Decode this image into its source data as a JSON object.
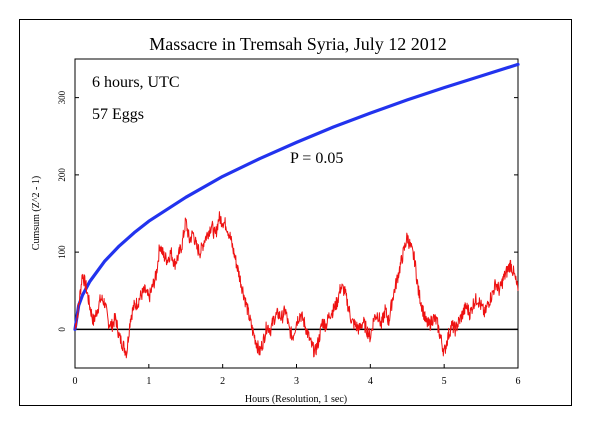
{
  "chart_data": {
    "type": "line",
    "title": "Massacre in Tremsah Syria, July 12 2012",
    "xlabel": "Hours (Resolution, 1 sec)",
    "ylabel": "Cumsum (Z^2 - 1)",
    "xlim": [
      0,
      6
    ],
    "ylim": [
      -50,
      350
    ],
    "xticks": [
      0,
      1,
      2,
      3,
      4,
      5,
      6
    ],
    "yticks": [
      0,
      100,
      200,
      300
    ],
    "annotations": [
      "6 hours, UTC",
      "57 Eggs",
      "P = 0.05"
    ],
    "grid": false,
    "colors": {
      "cumsum": "#ee1111",
      "p05": "#2233ee",
      "baseline": "#000000",
      "text_red": "#dd1111",
      "text_blue": "#2233cc"
    },
    "series": [
      {
        "name": "P = 0.05",
        "x": [
          0,
          0.05,
          0.1,
          0.2,
          0.4,
          0.6,
          0.8,
          1.0,
          1.5,
          2.0,
          2.5,
          3.0,
          3.5,
          4.0,
          4.5,
          5.0,
          5.5,
          6.0
        ],
        "values": [
          0,
          31,
          44,
          62,
          88,
          108,
          125,
          140,
          171,
          198,
          221,
          242,
          262,
          280,
          297,
          313,
          328,
          343
        ]
      },
      {
        "x": [
          0,
          0.05,
          0.1,
          0.15,
          0.2,
          0.25,
          0.3,
          0.35,
          0.4,
          0.45,
          0.5,
          0.55,
          0.6,
          0.65,
          0.7,
          0.75,
          0.8,
          0.85,
          0.9,
          0.95,
          1.0,
          1.05,
          1.1,
          1.15,
          1.2,
          1.25,
          1.3,
          1.35,
          1.4,
          1.45,
          1.5,
          1.55,
          1.6,
          1.65,
          1.7,
          1.75,
          1.8,
          1.85,
          1.9,
          1.95,
          2.0,
          2.05,
          2.1,
          2.15,
          2.2,
          2.25,
          2.3,
          2.35,
          2.4,
          2.45,
          2.5,
          2.55,
          2.6,
          2.65,
          2.7,
          2.75,
          2.8,
          2.85,
          2.9,
          2.95,
          3.0,
          3.05,
          3.1,
          3.15,
          3.2,
          3.25,
          3.3,
          3.35,
          3.4,
          3.45,
          3.5,
          3.55,
          3.6,
          3.65,
          3.7,
          3.75,
          3.8,
          3.85,
          3.9,
          3.95,
          4.0,
          4.05,
          4.1,
          4.15,
          4.2,
          4.25,
          4.3,
          4.35,
          4.4,
          4.45,
          4.5,
          4.55,
          4.6,
          4.65,
          4.7,
          4.75,
          4.8,
          4.85,
          4.9,
          4.95,
          5.0,
          5.05,
          5.1,
          5.15,
          5.2,
          5.25,
          5.3,
          5.35,
          5.4,
          5.45,
          5.5,
          5.55,
          5.6,
          5.65,
          5.7,
          5.75,
          5.8,
          5.85,
          5.9,
          5.95,
          6.0
        ],
        "values": [
          0,
          30,
          72,
          55,
          30,
          10,
          25,
          40,
          35,
          10,
          5,
          15,
          -10,
          -20,
          -30,
          15,
          30,
          35,
          45,
          50,
          40,
          55,
          70,
          110,
          95,
          90,
          100,
          85,
          95,
          110,
          140,
          115,
          125,
          105,
          100,
          115,
          125,
          135,
          120,
          145,
          140,
          135,
          120,
          100,
          80,
          60,
          40,
          20,
          0,
          -15,
          -30,
          -15,
          5,
          0,
          15,
          20,
          15,
          25,
          0,
          -10,
          10,
          20,
          10,
          -5,
          -20,
          -30,
          -15,
          10,
          5,
          20,
          25,
          35,
          55,
          50,
          30,
          10,
          5,
          0,
          10,
          0,
          -10,
          15,
          20,
          5,
          25,
          10,
          40,
          60,
          80,
          100,
          120,
          105,
          90,
          50,
          30,
          10,
          5,
          15,
          10,
          -10,
          -30,
          -10,
          5,
          0,
          10,
          20,
          30,
          20,
          35,
          40,
          30,
          20,
          35,
          45,
          60,
          50,
          65,
          75,
          85,
          70,
          50
        ]
      }
    ]
  }
}
